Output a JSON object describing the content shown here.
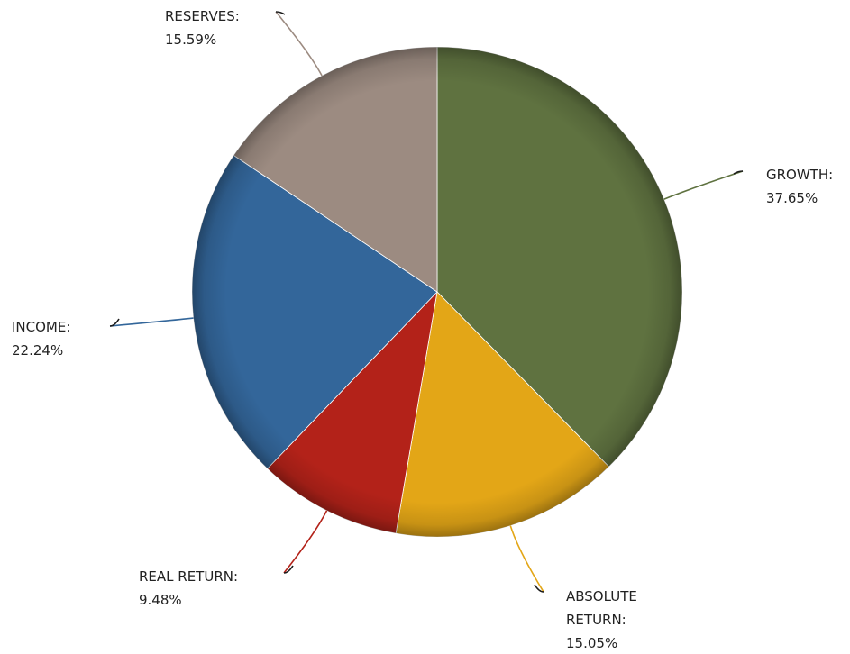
{
  "chart_data": {
    "type": "pie",
    "title": "",
    "categories": [
      "GROWTH:",
      "ABSOLUTE RETURN:",
      "REAL RETURN:",
      "INCOME:",
      "RESERVES:"
    ],
    "values": [
      37.65,
      15.05,
      9.48,
      22.24,
      15.59
    ],
    "value_labels": [
      "37.65%",
      "15.05%",
      "9.48%",
      "22.24%",
      "15.59%"
    ],
    "label_lines": [
      [
        "GROWTH:",
        "37.65%"
      ],
      [
        "ABSOLUTE",
        "RETURN:",
        "15.05%"
      ],
      [
        "REAL RETURN:",
        "9.48%"
      ],
      [
        "INCOME:",
        "22.24%"
      ],
      [
        "RESERVES:",
        "15.59%"
      ]
    ],
    "colors": [
      "#5f7240",
      "#e3a617",
      "#b32219",
      "#33669a",
      "#9c8b81"
    ],
    "start_angle": "12 o'clock",
    "direction": "clockwise",
    "legend": "none"
  }
}
